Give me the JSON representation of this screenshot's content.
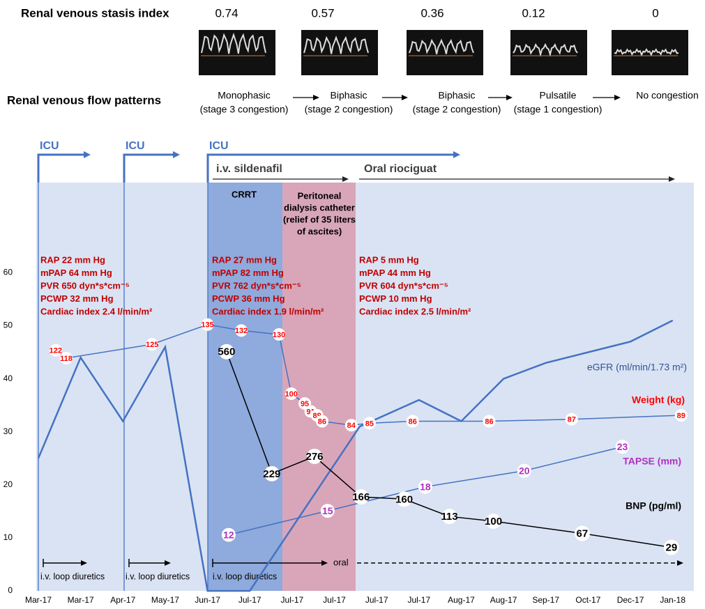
{
  "header_panel": {
    "stasis_label": "Renal venous stasis index",
    "stasis_values": [
      0.74,
      0.57,
      0.36,
      0.12,
      0
    ],
    "pattern_label": "Renal venous flow patterns",
    "patterns": [
      [
        "Monophasic",
        "(stage 3 congestion)"
      ],
      [
        "Biphasic",
        "(stage 2 congestion)"
      ],
      [
        "Biphasic",
        "(stage 2 congestion)"
      ],
      [
        "Pulsatile",
        "(stage 1 congestion)"
      ],
      [
        "No congestion"
      ]
    ]
  },
  "chart_data": {
    "type": "line",
    "xlim": [
      0,
      15.5
    ],
    "xticks": [
      {
        "value": 0,
        "label": "Mar-17"
      },
      {
        "value": 1,
        "label": "Mar-17"
      },
      {
        "value": 2,
        "label": "Apr-17"
      },
      {
        "value": 3,
        "label": "May-17"
      },
      {
        "value": 4,
        "label": "Jun-17"
      },
      {
        "value": 5,
        "label": "Jul-17"
      },
      {
        "value": 6,
        "label": "Jul-17"
      },
      {
        "value": 7,
        "label": "Jul-17"
      },
      {
        "value": 8,
        "label": "Jul-17"
      },
      {
        "value": 9,
        "label": "Jul-17"
      },
      {
        "value": 10,
        "label": "Aug-17"
      },
      {
        "value": 11,
        "label": "Aug-17"
      },
      {
        "value": 12,
        "label": "Sep-17"
      },
      {
        "value": 13,
        "label": "Oct-17"
      },
      {
        "value": 14,
        "label": "Dec-17"
      },
      {
        "value": 15,
        "label": "Jan-18"
      }
    ],
    "ylim": [
      0,
      77
    ],
    "yticks": [
      0,
      10,
      20,
      30,
      40,
      50,
      60
    ],
    "series": [
      {
        "name": "eGFR (ml/min/1.73 m²)",
        "color": "#4472c4",
        "label_color": "#2f5597",
        "x": [
          0,
          1,
          2,
          3,
          4,
          5,
          7.6,
          9,
          10,
          11,
          12,
          14,
          15
        ],
        "values": [
          25,
          44,
          32,
          46,
          0,
          0,
          31,
          36,
          32,
          40,
          43,
          47,
          51
        ]
      },
      {
        "name": "Weight (kg)",
        "color": "#4472c4",
        "label_color": "#ff0000",
        "ylim": [
          0,
          207
        ],
        "value_labels_shown": true,
        "x": [
          0.41,
          0.66,
          2.69,
          4.0,
          4.8,
          5.69,
          5.98,
          6.3,
          6.44,
          6.59,
          6.71,
          7.4,
          7.83,
          8.85,
          10.66,
          12.61,
          15.2
        ],
        "values": [
          122,
          118,
          125,
          135,
          132,
          130,
          100,
          95,
          91,
          89,
          86,
          84,
          85,
          86,
          86,
          87,
          89
        ]
      },
      {
        "name": "TAPSE (mm)",
        "color": "#4472c4",
        "label_color": "#b030c0",
        "ylim": [
          5,
          56
        ],
        "value_labels_shown": true,
        "x": [
          4.5,
          6.84,
          9.15,
          11.49,
          13.81
        ],
        "values": [
          12,
          15,
          18,
          20,
          23
        ]
      },
      {
        "name": "BNP (pg/ml)",
        "color": "#000000",
        "label_color": "#000000",
        "ylim": [
          -89,
          1019
        ],
        "value_labels_shown": true,
        "x": [
          4.45,
          5.52,
          6.53,
          7.63,
          8.65,
          9.72,
          10.76,
          12.86,
          14.97
        ],
        "values": [
          560,
          229,
          276,
          166,
          160,
          113,
          100,
          67,
          29
        ]
      }
    ],
    "annotations": {
      "icu": [
        "ICU",
        "ICU",
        "ICU"
      ],
      "sildenafil": "i.v. sildenafil",
      "riociguat": "Oral riociguat",
      "crrt": "CRRT",
      "peritoneal": [
        "Peritoneal",
        "dialysis catheter",
        "(relief of 35 liters",
        "of ascites)"
      ],
      "hemodynamics": [
        [
          "RAP 22 mm Hg",
          "mPAP 64 mm Hg",
          "PVR 650 dyn*s*cm⁻⁵",
          "PCWP 32 mm Hg",
          "Cardiac index 2.4 l/min/m²"
        ],
        [
          "RAP 27 mm Hg",
          "mPAP 82 mm Hg",
          "PVR 762 dyn*s*cm⁻⁵",
          "PCWP 36 mm Hg",
          "Cardiac index 1.9 l/min/m²"
        ],
        [
          "RAP 5 mm Hg",
          "mPAP 44 mm Hg",
          "PVR 604 dyn*s*cm⁻⁵",
          "PCWP 10 mm Hg",
          "Cardiac index 2.5 l/min/m²"
        ]
      ],
      "diuretics": [
        "i.v. loop diuretics",
        "i.v. loop diuretics",
        "i.v. loop diuretics",
        "oral"
      ]
    }
  }
}
